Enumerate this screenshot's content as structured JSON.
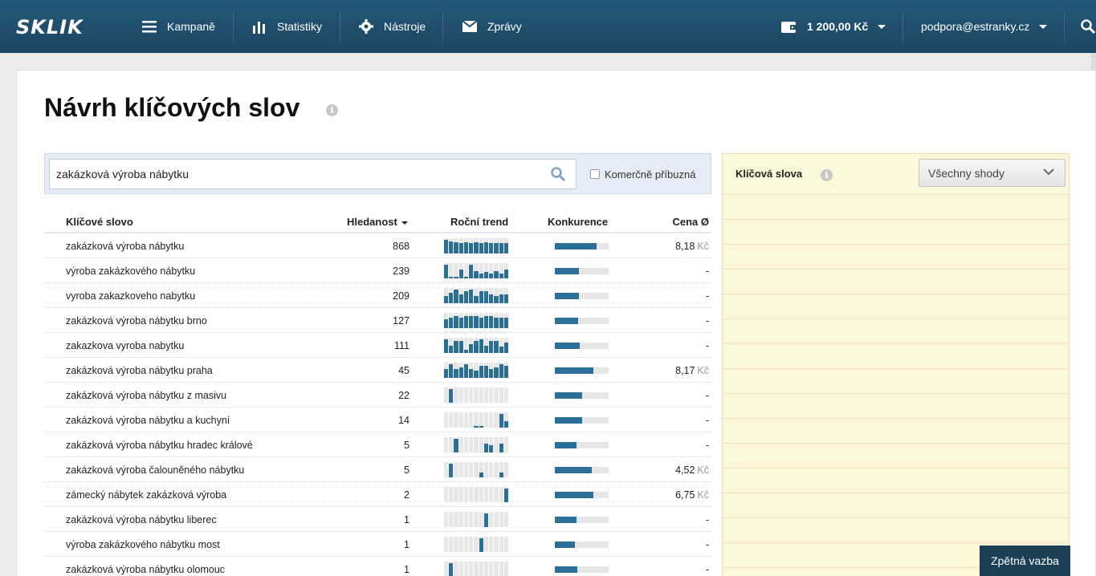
{
  "topbar": {
    "logo": "SKLIK",
    "nav": [
      {
        "label": "Kampaně",
        "icon": "menu-icon"
      },
      {
        "label": "Statistiky",
        "icon": "bar-chart-icon"
      },
      {
        "label": "Nástroje",
        "icon": "gear-icon"
      },
      {
        "label": "Zprávy",
        "icon": "envelope-icon"
      }
    ],
    "credit": "1 200,00 Kč",
    "account": "podpora@estranky.cz"
  },
  "page": {
    "title": "Návrh klíčových slov"
  },
  "search": {
    "value": "zakázková výroba nábytku",
    "checkbox_label": "Komerčně příbuzná",
    "checked": false
  },
  "table": {
    "headers": {
      "keyword": "Klíčové slovo",
      "volume": "Hledanost",
      "trend": "Roční trend",
      "competition": "Konkurence",
      "price": "Cena Ø"
    },
    "rows": [
      {
        "keyword": "zakázková výroba nábytku",
        "volume": "868",
        "trend": [
          0.9,
          0.8,
          0.75,
          0.7,
          0.75,
          0.7,
          0.75,
          0.7,
          0.75,
          0.7,
          0.7,
          0.7,
          0.7
        ],
        "competition": 0.78,
        "price": "8,18",
        "currency": "Kč"
      },
      {
        "keyword": "výroba zakázkového nábytku",
        "volume": "239",
        "trend": [
          0.9,
          0.1,
          0.1,
          0.6,
          0.1,
          0.9,
          0.5,
          0.3,
          0.4,
          0.3,
          0.5,
          0.3,
          0.6
        ],
        "competition": 0.45,
        "price": "-",
        "currency": ""
      },
      {
        "keyword": "vyroba zakazkoveho nabytku",
        "volume": "209",
        "trend": [
          0.5,
          0.7,
          0.9,
          0.6,
          0.8,
          0.9,
          0.5,
          0.8,
          0.8,
          0.6,
          0.5,
          0.6,
          0.6
        ],
        "competition": 0.45,
        "price": "-",
        "currency": ""
      },
      {
        "keyword": "zakázková výroba nábytku brno",
        "volume": "127",
        "trend": [
          0.6,
          0.7,
          0.8,
          0.7,
          0.8,
          0.8,
          0.8,
          0.7,
          0.8,
          0.8,
          0.7,
          0.7,
          0.7
        ],
        "competition": 0.43,
        "price": "-",
        "currency": ""
      },
      {
        "keyword": "zakazkova vyroba nabytku",
        "volume": "111",
        "trend": [
          0.9,
          0.5,
          0.8,
          0.8,
          0.2,
          0.6,
          0.8,
          0.9,
          0.5,
          0.8,
          0.8,
          0.4,
          0.7
        ],
        "competition": 0.47,
        "price": "-",
        "currency": ""
      },
      {
        "keyword": "zakázková výroba nábytku praha",
        "volume": "45",
        "trend": [
          0.6,
          0.9,
          0.6,
          0.7,
          0.9,
          0.6,
          0.5,
          0.8,
          0.8,
          0.6,
          0.7,
          0.9,
          0.8
        ],
        "competition": 0.72,
        "price": "8,17",
        "currency": "Kč"
      },
      {
        "keyword": "zakázková výroba nábytku z masivu",
        "volume": "22",
        "trend": [
          0,
          0.9,
          0,
          0,
          0,
          0,
          0,
          0,
          0,
          0,
          0,
          0,
          0
        ],
        "competition": 0.5,
        "price": "-",
        "currency": ""
      },
      {
        "keyword": "zakázková výroba nábytku a kuchyní",
        "volume": "14",
        "trend": [
          0,
          0,
          0,
          0,
          0,
          0,
          0.1,
          0.1,
          0,
          0,
          0,
          0.9,
          0.4
        ],
        "competition": 0.5,
        "price": "-",
        "currency": ""
      },
      {
        "keyword": "zakázková výroba nábytku hradec králové",
        "volume": "5",
        "trend": [
          0,
          0,
          0.9,
          0,
          0,
          0,
          0,
          0,
          0.6,
          0.5,
          0,
          0.6,
          0
        ],
        "competition": 0.4,
        "price": "-",
        "currency": ""
      },
      {
        "keyword": "zakázková výroba čalouněného nábytku",
        "volume": "5",
        "trend": [
          0,
          0.9,
          0,
          0,
          0,
          0,
          0,
          0.3,
          0,
          0,
          0,
          0.3,
          0
        ],
        "competition": 0.68,
        "price": "4,52",
        "currency": "Kč"
      },
      {
        "keyword": "zámecký nábytek zakázková výroba",
        "volume": "2",
        "trend": [
          0,
          0,
          0,
          0,
          0,
          0,
          0,
          0,
          0,
          0,
          0,
          0,
          0.9
        ],
        "competition": 0.72,
        "price": "6,75",
        "currency": "Kč"
      },
      {
        "keyword": "zakázková výroba nábytku liberec",
        "volume": "1",
        "trend": [
          0,
          0,
          0,
          0,
          0,
          0,
          0,
          0,
          0.9,
          0,
          0,
          0,
          0
        ],
        "competition": 0.4,
        "price": "-",
        "currency": ""
      },
      {
        "keyword": "výroba zakázkového nábytku most",
        "volume": "1",
        "trend": [
          0,
          0,
          0,
          0,
          0,
          0,
          0,
          0.9,
          0,
          0,
          0,
          0,
          0
        ],
        "competition": 0.38,
        "price": "-",
        "currency": ""
      },
      {
        "keyword": "zakázková výroba nábytku olomouc",
        "volume": "1",
        "trend": [
          0,
          0.9,
          0,
          0,
          0,
          0,
          0,
          0,
          0,
          0,
          0,
          0,
          0
        ],
        "competition": 0.42,
        "price": "-",
        "currency": ""
      }
    ]
  },
  "right_panel": {
    "title": "Klíčová slova",
    "select_value": "Všechny shody"
  },
  "feedback": "Zpětná vazba",
  "colors": {
    "topbar": "#1f4e69",
    "bar": "#2a6f97",
    "right_panel_bg": "#fdf7d9"
  }
}
